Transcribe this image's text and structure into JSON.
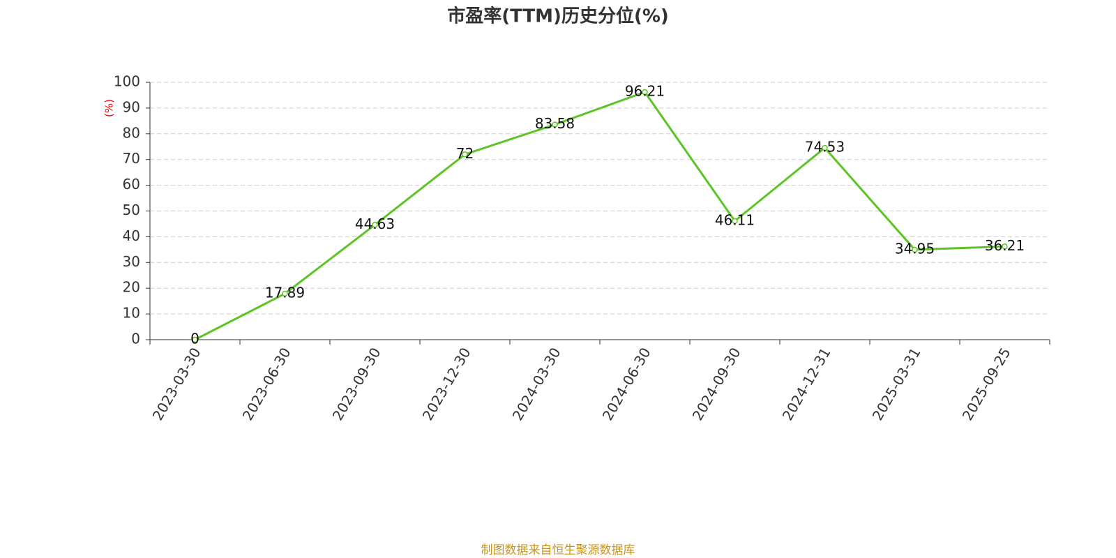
{
  "chart_data": {
    "type": "line",
    "title": "市盈率(TTM)历史分位(%)",
    "y_label": "(%)",
    "categories": [
      "2023-03-30",
      "2023-06-30",
      "2023-09-30",
      "2023-12-30",
      "2024-03-30",
      "2024-06-30",
      "2024-09-30",
      "2024-12-31",
      "2025-03-31",
      "2025-09-25"
    ],
    "series": [
      {
        "name": "市盈率(TTM)历史分位",
        "color": "#5cc424",
        "values": [
          0,
          17.89,
          44.63,
          72,
          83.58,
          96.21,
          46.11,
          74.53,
          34.95,
          36.21
        ]
      }
    ],
    "ylim": [
      0,
      100
    ],
    "yticks": [
      0,
      10,
      20,
      30,
      40,
      50,
      60,
      70,
      80,
      90,
      100
    ],
    "grid": true,
    "source": "制图数据来自恒生聚源数据库"
  }
}
